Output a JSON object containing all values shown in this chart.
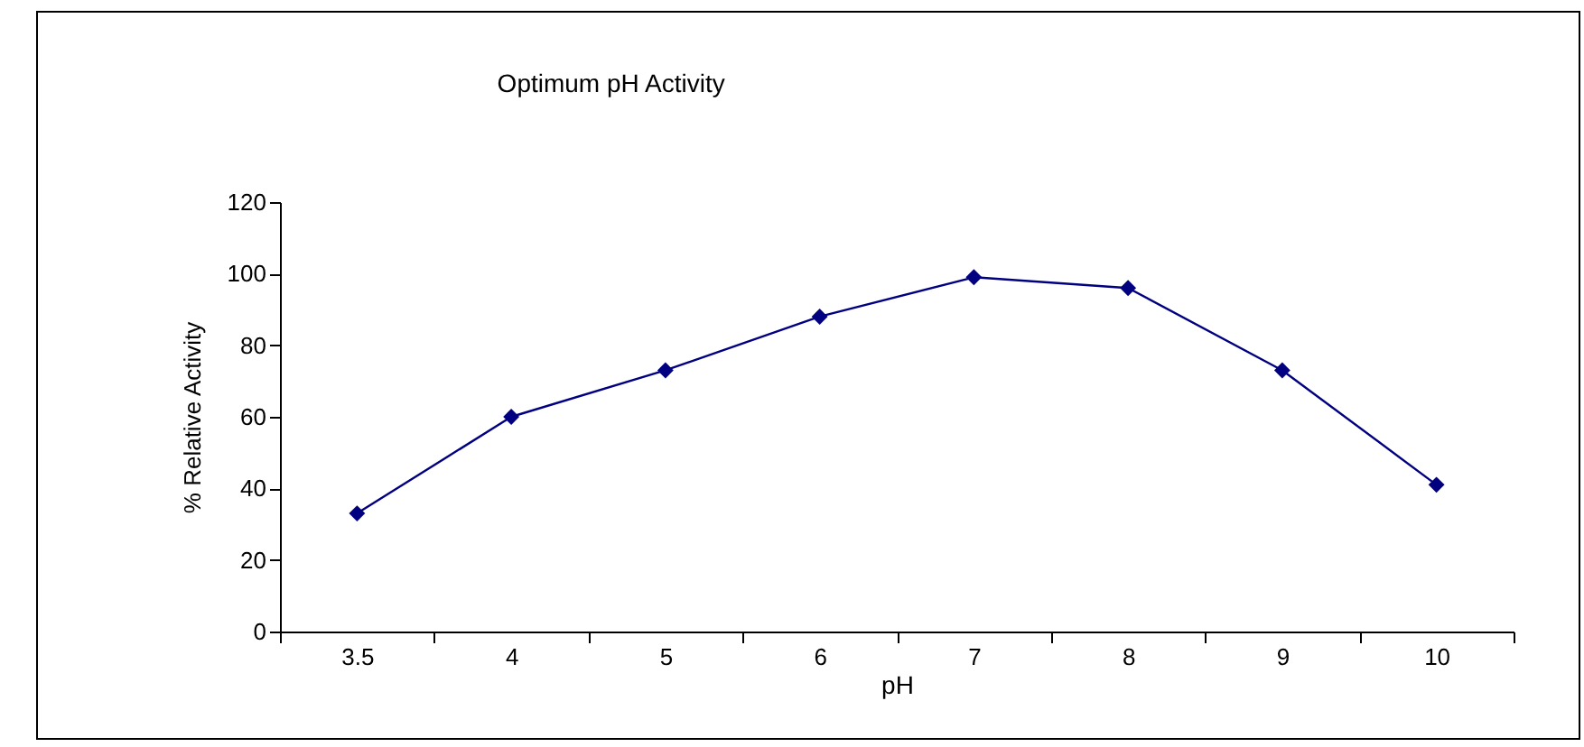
{
  "chart_data": {
    "type": "line",
    "title": "Optimum pH Activity",
    "xlabel": "pH",
    "ylabel": "% Relative Activity",
    "categories": [
      "3.5",
      "4",
      "5",
      "6",
      "7",
      "8",
      "9",
      "10"
    ],
    "series": [
      {
        "color": "#000080",
        "values": [
          33,
          60,
          73,
          88,
          99,
          96,
          73,
          41
        ]
      }
    ],
    "ylim": [
      0,
      120
    ],
    "yticks": [
      0,
      20,
      40,
      60,
      80,
      100,
      120
    ],
    "grid": false,
    "marker": "diamond",
    "line_style": "solid"
  }
}
